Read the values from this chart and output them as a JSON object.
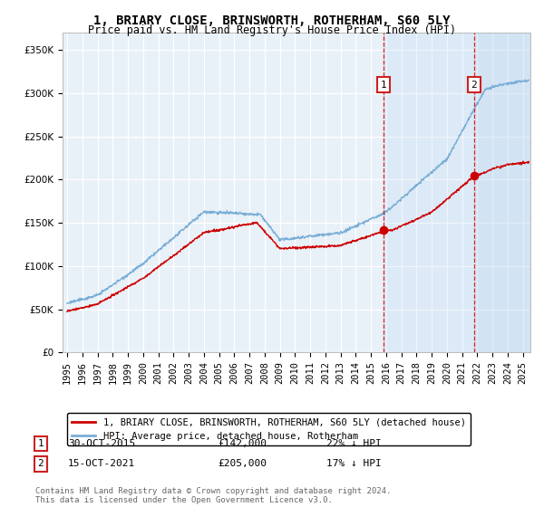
{
  "title": "1, BRIARY CLOSE, BRINSWORTH, ROTHERHAM, S60 5LY",
  "subtitle": "Price paid vs. HM Land Registry's House Price Index (HPI)",
  "ytick_vals": [
    0,
    50000,
    100000,
    150000,
    200000,
    250000,
    300000,
    350000
  ],
  "ylim": [
    0,
    370000
  ],
  "xlim_start": 1994.7,
  "xlim_end": 2025.5,
  "hpi_color": "#7aaed6",
  "hpi_fill_color": "#ddeeff",
  "price_color": "#cc0000",
  "marker_color": "#cc0000",
  "sale1_x": 2015.83,
  "sale1_y": 142000,
  "sale1_label": "1",
  "sale1_date": "30-OCT-2015",
  "sale1_price": "£142,000",
  "sale1_pct": "22% ↓ HPI",
  "sale2_x": 2021.79,
  "sale2_y": 205000,
  "sale2_label": "2",
  "sale2_date": "15-OCT-2021",
  "sale2_price": "£205,000",
  "sale2_pct": "17% ↓ HPI",
  "legend_line1": "1, BRIARY CLOSE, BRINSWORTH, ROTHERHAM, S60 5LY (detached house)",
  "legend_line2": "HPI: Average price, detached house, Rotherham",
  "footnote": "Contains HM Land Registry data © Crown copyright and database right 2024.\nThis data is licensed under the Open Government Licence v3.0.",
  "background_color": "#ffffff",
  "plot_bg_color": "#e8f0f8",
  "grid_color": "#ffffff",
  "title_fontsize": 10,
  "subtitle_fontsize": 8.5,
  "tick_fontsize": 7.5
}
